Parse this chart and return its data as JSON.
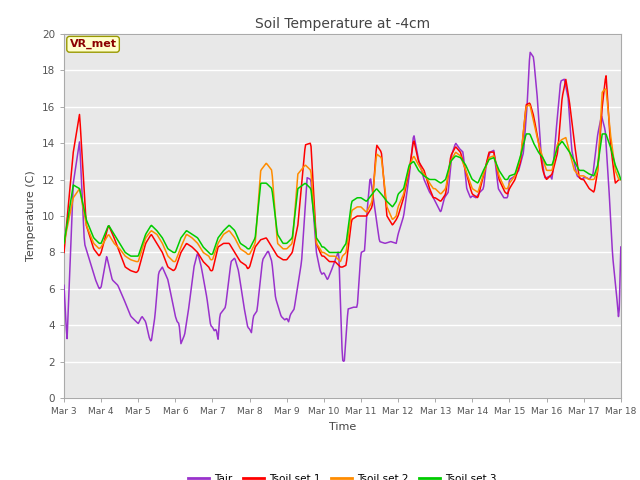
{
  "title": "Soil Temperature at -4cm",
  "xlabel": "Time",
  "ylabel": "Temperature (C)",
  "ylim": [
    0,
    20
  ],
  "xlim": [
    0,
    15
  ],
  "plot_bg_color": "#e8e8e8",
  "grid_color": "white",
  "annotation_text": "VR_met",
  "annotation_color": "#8b0000",
  "annotation_bg": "#ffffcc",
  "annotation_edge": "#999900",
  "line_colors": {
    "Tair": "#9932CC",
    "Tsoil_set1": "#ff0000",
    "Tsoil_set2": "#ff8c00",
    "Tsoil_set3": "#00cc00"
  },
  "legend_labels": [
    "Tair",
    "Tsoil set 1",
    "Tsoil set 2",
    "Tsoil set 3"
  ],
  "xtick_labels": [
    "Mar 3",
    "Mar 4",
    "Mar 5",
    "Mar 6",
    "Mar 7",
    "Mar 8",
    "Mar 9",
    "Mar 10",
    "Mar 11",
    "Mar 12",
    "Mar 13",
    "Mar 14",
    "Mar 15",
    "Mar 16",
    "Mar 17",
    "Mar 18"
  ],
  "tair_waypoints": [
    [
      0.0,
      6.2
    ],
    [
      0.08,
      3.1
    ],
    [
      0.25,
      11.8
    ],
    [
      0.42,
      14.1
    ],
    [
      0.55,
      8.5
    ],
    [
      0.7,
      7.5
    ],
    [
      0.85,
      6.5
    ],
    [
      0.95,
      6.0
    ],
    [
      1.0,
      6.1
    ],
    [
      1.15,
      7.8
    ],
    [
      1.3,
      6.5
    ],
    [
      1.45,
      6.2
    ],
    [
      1.6,
      5.5
    ],
    [
      1.8,
      4.5
    ],
    [
      1.95,
      4.2
    ],
    [
      2.0,
      4.1
    ],
    [
      2.1,
      4.5
    ],
    [
      2.2,
      4.2
    ],
    [
      2.3,
      3.3
    ],
    [
      2.35,
      3.1
    ],
    [
      2.45,
      4.5
    ],
    [
      2.55,
      6.9
    ],
    [
      2.65,
      7.2
    ],
    [
      2.8,
      6.5
    ],
    [
      2.95,
      5.0
    ],
    [
      3.0,
      4.5
    ],
    [
      3.05,
      4.2
    ],
    [
      3.1,
      4.1
    ],
    [
      3.15,
      3.0
    ],
    [
      3.25,
      3.5
    ],
    [
      3.35,
      4.8
    ],
    [
      3.5,
      7.2
    ],
    [
      3.6,
      8.0
    ],
    [
      3.7,
      7.2
    ],
    [
      3.85,
      5.5
    ],
    [
      3.95,
      4.0
    ],
    [
      4.0,
      3.9
    ],
    [
      4.05,
      3.7
    ],
    [
      4.1,
      3.8
    ],
    [
      4.15,
      3.2
    ],
    [
      4.2,
      4.6
    ],
    [
      4.35,
      5.0
    ],
    [
      4.5,
      7.5
    ],
    [
      4.6,
      7.7
    ],
    [
      4.7,
      7.0
    ],
    [
      4.85,
      5.0
    ],
    [
      4.95,
      3.9
    ],
    [
      5.0,
      3.8
    ],
    [
      5.05,
      3.6
    ],
    [
      5.1,
      4.5
    ],
    [
      5.2,
      4.8
    ],
    [
      5.35,
      7.6
    ],
    [
      5.5,
      8.1
    ],
    [
      5.6,
      7.5
    ],
    [
      5.7,
      5.5
    ],
    [
      5.85,
      4.5
    ],
    [
      5.95,
      4.3
    ],
    [
      6.0,
      4.4
    ],
    [
      6.05,
      4.2
    ],
    [
      6.1,
      4.6
    ],
    [
      6.2,
      4.9
    ],
    [
      6.4,
      7.5
    ],
    [
      6.55,
      12.1
    ],
    [
      6.65,
      12.0
    ],
    [
      6.8,
      8.0
    ],
    [
      6.9,
      7.0
    ],
    [
      6.95,
      6.8
    ],
    [
      7.0,
      6.9
    ],
    [
      7.05,
      6.7
    ],
    [
      7.1,
      6.5
    ],
    [
      7.2,
      7.0
    ],
    [
      7.4,
      8.1
    ],
    [
      7.5,
      2.1
    ],
    [
      7.55,
      2.0
    ],
    [
      7.65,
      4.9
    ],
    [
      7.8,
      5.0
    ],
    [
      7.9,
      5.0
    ],
    [
      8.0,
      8.0
    ],
    [
      8.1,
      8.1
    ],
    [
      8.15,
      9.9
    ],
    [
      8.25,
      12.2
    ],
    [
      8.4,
      10.0
    ],
    [
      8.5,
      8.6
    ],
    [
      8.65,
      8.5
    ],
    [
      8.8,
      8.6
    ],
    [
      8.95,
      8.5
    ],
    [
      9.0,
      9.0
    ],
    [
      9.15,
      10.0
    ],
    [
      9.3,
      12.2
    ],
    [
      9.42,
      14.5
    ],
    [
      9.55,
      13.1
    ],
    [
      9.7,
      12.0
    ],
    [
      9.85,
      11.3
    ],
    [
      9.95,
      11.0
    ],
    [
      10.0,
      10.8
    ],
    [
      10.15,
      10.2
    ],
    [
      10.25,
      11.0
    ],
    [
      10.35,
      11.3
    ],
    [
      10.45,
      13.4
    ],
    [
      10.55,
      14.0
    ],
    [
      10.65,
      13.7
    ],
    [
      10.75,
      13.5
    ],
    [
      10.85,
      11.5
    ],
    [
      10.95,
      11.0
    ],
    [
      11.0,
      11.1
    ],
    [
      11.1,
      11.0
    ],
    [
      11.2,
      11.3
    ],
    [
      11.3,
      11.5
    ],
    [
      11.38,
      12.9
    ],
    [
      11.48,
      13.5
    ],
    [
      11.58,
      13.6
    ],
    [
      11.7,
      11.5
    ],
    [
      11.85,
      11.0
    ],
    [
      11.95,
      11.0
    ],
    [
      12.0,
      12.0
    ],
    [
      12.08,
      12.1
    ],
    [
      12.15,
      12.2
    ],
    [
      12.25,
      12.5
    ],
    [
      12.38,
      13.5
    ],
    [
      12.48,
      16.2
    ],
    [
      12.55,
      19.0
    ],
    [
      12.65,
      18.7
    ],
    [
      12.75,
      16.5
    ],
    [
      12.85,
      13.5
    ],
    [
      12.95,
      12.1
    ],
    [
      13.0,
      12.1
    ],
    [
      13.1,
      12.2
    ],
    [
      13.15,
      12.0
    ],
    [
      13.25,
      14.5
    ],
    [
      13.38,
      17.4
    ],
    [
      13.48,
      17.5
    ],
    [
      13.58,
      16.5
    ],
    [
      13.68,
      13.6
    ],
    [
      13.82,
      12.2
    ],
    [
      13.95,
      12.0
    ],
    [
      14.0,
      12.1
    ],
    [
      14.08,
      12.1
    ],
    [
      14.15,
      12.0
    ],
    [
      14.25,
      12.3
    ],
    [
      14.38,
      14.5
    ],
    [
      14.48,
      15.5
    ],
    [
      14.58,
      14.7
    ],
    [
      14.68,
      11.5
    ],
    [
      14.78,
      7.8
    ],
    [
      14.88,
      5.8
    ],
    [
      14.95,
      4.2
    ],
    [
      15.0,
      8.3
    ]
  ],
  "ts1_waypoints": [
    [
      0.0,
      8.0
    ],
    [
      0.25,
      13.5
    ],
    [
      0.42,
      15.6
    ],
    [
      0.6,
      9.5
    ],
    [
      0.8,
      8.2
    ],
    [
      0.95,
      7.8
    ],
    [
      1.0,
      8.0
    ],
    [
      1.2,
      9.5
    ],
    [
      1.35,
      8.8
    ],
    [
      1.5,
      8.0
    ],
    [
      1.65,
      7.2
    ],
    [
      1.8,
      7.0
    ],
    [
      1.95,
      6.9
    ],
    [
      2.0,
      7.0
    ],
    [
      2.2,
      8.5
    ],
    [
      2.35,
      9.0
    ],
    [
      2.5,
      8.5
    ],
    [
      2.65,
      8.0
    ],
    [
      2.8,
      7.2
    ],
    [
      2.95,
      7.0
    ],
    [
      3.0,
      7.1
    ],
    [
      3.15,
      8.0
    ],
    [
      3.3,
      8.5
    ],
    [
      3.45,
      8.3
    ],
    [
      3.6,
      8.0
    ],
    [
      3.75,
      7.5
    ],
    [
      3.9,
      7.2
    ],
    [
      3.95,
      7.0
    ],
    [
      4.0,
      7.0
    ],
    [
      4.15,
      8.3
    ],
    [
      4.3,
      8.5
    ],
    [
      4.45,
      8.5
    ],
    [
      4.6,
      8.0
    ],
    [
      4.75,
      7.5
    ],
    [
      4.9,
      7.3
    ],
    [
      4.95,
      7.1
    ],
    [
      5.0,
      7.2
    ],
    [
      5.15,
      8.3
    ],
    [
      5.3,
      8.7
    ],
    [
      5.45,
      8.8
    ],
    [
      5.6,
      8.3
    ],
    [
      5.75,
      7.8
    ],
    [
      5.9,
      7.6
    ],
    [
      6.0,
      7.6
    ],
    [
      6.15,
      8.0
    ],
    [
      6.3,
      9.5
    ],
    [
      6.5,
      13.9
    ],
    [
      6.65,
      14.0
    ],
    [
      6.8,
      8.5
    ],
    [
      6.9,
      8.0
    ],
    [
      6.95,
      7.8
    ],
    [
      7.0,
      7.8
    ],
    [
      7.15,
      7.5
    ],
    [
      7.3,
      7.5
    ],
    [
      7.45,
      7.2
    ],
    [
      7.5,
      7.2
    ],
    [
      7.6,
      7.3
    ],
    [
      7.75,
      9.8
    ],
    [
      7.9,
      10.0
    ],
    [
      8.0,
      10.0
    ],
    [
      8.15,
      10.0
    ],
    [
      8.3,
      10.5
    ],
    [
      8.42,
      13.9
    ],
    [
      8.55,
      13.5
    ],
    [
      8.7,
      10.0
    ],
    [
      8.85,
      9.5
    ],
    [
      8.95,
      9.8
    ],
    [
      9.0,
      10.0
    ],
    [
      9.15,
      11.0
    ],
    [
      9.3,
      12.5
    ],
    [
      9.42,
      14.2
    ],
    [
      9.55,
      13.0
    ],
    [
      9.7,
      12.5
    ],
    [
      9.85,
      11.5
    ],
    [
      9.95,
      11.0
    ],
    [
      10.0,
      11.0
    ],
    [
      10.15,
      10.8
    ],
    [
      10.28,
      11.2
    ],
    [
      10.42,
      13.3
    ],
    [
      10.55,
      13.8
    ],
    [
      10.68,
      13.5
    ],
    [
      10.82,
      12.5
    ],
    [
      10.95,
      11.5
    ],
    [
      11.0,
      11.2
    ],
    [
      11.15,
      11.0
    ],
    [
      11.3,
      12.2
    ],
    [
      11.45,
      13.5
    ],
    [
      11.58,
      13.5
    ],
    [
      11.72,
      12.0
    ],
    [
      11.88,
      11.3
    ],
    [
      11.95,
      11.2
    ],
    [
      12.0,
      11.5
    ],
    [
      12.15,
      12.0
    ],
    [
      12.3,
      13.0
    ],
    [
      12.45,
      16.1
    ],
    [
      12.55,
      16.2
    ],
    [
      12.65,
      15.5
    ],
    [
      12.78,
      14.1
    ],
    [
      12.9,
      12.5
    ],
    [
      12.95,
      12.2
    ],
    [
      13.0,
      12.0
    ],
    [
      13.15,
      12.3
    ],
    [
      13.3,
      13.5
    ],
    [
      13.42,
      16.5
    ],
    [
      13.52,
      17.5
    ],
    [
      13.62,
      16.2
    ],
    [
      13.75,
      14.0
    ],
    [
      13.88,
      12.1
    ],
    [
      13.95,
      12.0
    ],
    [
      14.0,
      12.0
    ],
    [
      14.15,
      11.5
    ],
    [
      14.28,
      11.3
    ],
    [
      14.38,
      12.5
    ],
    [
      14.5,
      16.0
    ],
    [
      14.6,
      17.8
    ],
    [
      14.72,
      14.0
    ],
    [
      14.85,
      11.8
    ],
    [
      14.95,
      12.0
    ],
    [
      15.0,
      12.0
    ]
  ],
  "ts2_waypoints": [
    [
      0.0,
      8.5
    ],
    [
      0.25,
      11.0
    ],
    [
      0.42,
      11.5
    ],
    [
      0.6,
      9.5
    ],
    [
      0.8,
      8.5
    ],
    [
      0.95,
      8.2
    ],
    [
      1.0,
      8.3
    ],
    [
      1.2,
      9.0
    ],
    [
      1.35,
      8.5
    ],
    [
      1.5,
      8.2
    ],
    [
      1.65,
      7.8
    ],
    [
      1.8,
      7.6
    ],
    [
      1.95,
      7.5
    ],
    [
      2.0,
      7.5
    ],
    [
      2.2,
      8.8
    ],
    [
      2.35,
      9.2
    ],
    [
      2.5,
      9.0
    ],
    [
      2.65,
      8.5
    ],
    [
      2.8,
      7.8
    ],
    [
      2.95,
      7.5
    ],
    [
      3.0,
      7.5
    ],
    [
      3.15,
      8.3
    ],
    [
      3.3,
      9.0
    ],
    [
      3.45,
      8.8
    ],
    [
      3.6,
      8.5
    ],
    [
      3.75,
      8.0
    ],
    [
      3.9,
      7.8
    ],
    [
      3.95,
      7.6
    ],
    [
      4.0,
      7.6
    ],
    [
      4.15,
      8.5
    ],
    [
      4.3,
      9.0
    ],
    [
      4.45,
      9.2
    ],
    [
      4.6,
      8.8
    ],
    [
      4.75,
      8.2
    ],
    [
      4.9,
      8.0
    ],
    [
      4.95,
      7.9
    ],
    [
      5.0,
      7.9
    ],
    [
      5.15,
      8.5
    ],
    [
      5.3,
      12.5
    ],
    [
      5.45,
      12.9
    ],
    [
      5.6,
      12.5
    ],
    [
      5.75,
      8.5
    ],
    [
      5.9,
      8.2
    ],
    [
      6.0,
      8.2
    ],
    [
      6.15,
      8.5
    ],
    [
      6.3,
      12.3
    ],
    [
      6.5,
      12.8
    ],
    [
      6.65,
      12.5
    ],
    [
      6.8,
      8.5
    ],
    [
      6.9,
      8.2
    ],
    [
      6.95,
      8.0
    ],
    [
      7.0,
      8.0
    ],
    [
      7.15,
      7.8
    ],
    [
      7.3,
      7.8
    ],
    [
      7.45,
      7.5
    ],
    [
      7.5,
      7.8
    ],
    [
      7.6,
      8.0
    ],
    [
      7.75,
      10.3
    ],
    [
      7.9,
      10.5
    ],
    [
      8.0,
      10.5
    ],
    [
      8.15,
      10.2
    ],
    [
      8.3,
      10.8
    ],
    [
      8.42,
      13.4
    ],
    [
      8.55,
      13.2
    ],
    [
      8.7,
      10.5
    ],
    [
      8.85,
      9.8
    ],
    [
      8.95,
      10.0
    ],
    [
      9.0,
      10.5
    ],
    [
      9.15,
      11.2
    ],
    [
      9.3,
      12.7
    ],
    [
      9.42,
      13.3
    ],
    [
      9.55,
      12.8
    ],
    [
      9.7,
      12.3
    ],
    [
      9.85,
      11.8
    ],
    [
      9.95,
      11.5
    ],
    [
      10.0,
      11.5
    ],
    [
      10.15,
      11.2
    ],
    [
      10.28,
      11.5
    ],
    [
      10.42,
      13.0
    ],
    [
      10.55,
      13.5
    ],
    [
      10.68,
      13.3
    ],
    [
      10.82,
      12.5
    ],
    [
      10.95,
      11.8
    ],
    [
      11.0,
      11.5
    ],
    [
      11.15,
      11.3
    ],
    [
      11.3,
      12.3
    ],
    [
      11.45,
      13.2
    ],
    [
      11.58,
      13.3
    ],
    [
      11.72,
      12.2
    ],
    [
      11.88,
      11.5
    ],
    [
      11.95,
      11.5
    ],
    [
      12.0,
      11.8
    ],
    [
      12.15,
      12.2
    ],
    [
      12.3,
      13.2
    ],
    [
      12.45,
      16.0
    ],
    [
      12.55,
      16.1
    ],
    [
      12.65,
      15.2
    ],
    [
      12.78,
      14.0
    ],
    [
      12.9,
      13.2
    ],
    [
      12.95,
      12.8
    ],
    [
      13.0,
      12.5
    ],
    [
      13.15,
      12.5
    ],
    [
      13.3,
      14.0
    ],
    [
      13.42,
      14.2
    ],
    [
      13.52,
      14.3
    ],
    [
      13.62,
      13.5
    ],
    [
      13.75,
      12.5
    ],
    [
      13.88,
      12.2
    ],
    [
      13.95,
      12.2
    ],
    [
      14.0,
      12.2
    ],
    [
      14.15,
      12.0
    ],
    [
      14.28,
      12.0
    ],
    [
      14.38,
      12.5
    ],
    [
      14.5,
      16.8
    ],
    [
      14.6,
      17.0
    ],
    [
      14.72,
      14.5
    ],
    [
      14.85,
      12.5
    ],
    [
      14.95,
      12.0
    ],
    [
      15.0,
      12.0
    ]
  ],
  "ts3_waypoints": [
    [
      0.0,
      8.5
    ],
    [
      0.25,
      11.7
    ],
    [
      0.42,
      11.5
    ],
    [
      0.6,
      9.8
    ],
    [
      0.8,
      8.8
    ],
    [
      0.95,
      8.5
    ],
    [
      1.0,
      8.5
    ],
    [
      1.2,
      9.5
    ],
    [
      1.35,
      9.0
    ],
    [
      1.5,
      8.5
    ],
    [
      1.65,
      8.0
    ],
    [
      1.8,
      7.8
    ],
    [
      1.95,
      7.8
    ],
    [
      2.0,
      7.8
    ],
    [
      2.2,
      9.0
    ],
    [
      2.35,
      9.5
    ],
    [
      2.5,
      9.2
    ],
    [
      2.65,
      8.8
    ],
    [
      2.8,
      8.2
    ],
    [
      2.95,
      8.0
    ],
    [
      3.0,
      8.0
    ],
    [
      3.15,
      8.8
    ],
    [
      3.3,
      9.2
    ],
    [
      3.45,
      9.0
    ],
    [
      3.6,
      8.8
    ],
    [
      3.75,
      8.3
    ],
    [
      3.9,
      8.0
    ],
    [
      3.95,
      7.9
    ],
    [
      4.0,
      7.9
    ],
    [
      4.15,
      8.8
    ],
    [
      4.3,
      9.2
    ],
    [
      4.45,
      9.5
    ],
    [
      4.6,
      9.2
    ],
    [
      4.75,
      8.5
    ],
    [
      4.9,
      8.3
    ],
    [
      4.95,
      8.2
    ],
    [
      5.0,
      8.2
    ],
    [
      5.15,
      8.8
    ],
    [
      5.3,
      11.8
    ],
    [
      5.45,
      11.8
    ],
    [
      5.6,
      11.5
    ],
    [
      5.75,
      9.0
    ],
    [
      5.9,
      8.5
    ],
    [
      6.0,
      8.5
    ],
    [
      6.15,
      8.8
    ],
    [
      6.3,
      11.5
    ],
    [
      6.5,
      11.8
    ],
    [
      6.65,
      11.5
    ],
    [
      6.8,
      8.8
    ],
    [
      6.9,
      8.5
    ],
    [
      6.95,
      8.3
    ],
    [
      7.0,
      8.3
    ],
    [
      7.15,
      8.0
    ],
    [
      7.3,
      8.0
    ],
    [
      7.45,
      8.0
    ],
    [
      7.5,
      8.2
    ],
    [
      7.6,
      8.5
    ],
    [
      7.75,
      10.8
    ],
    [
      7.9,
      11.0
    ],
    [
      8.0,
      11.0
    ],
    [
      8.15,
      10.8
    ],
    [
      8.3,
      11.2
    ],
    [
      8.42,
      11.5
    ],
    [
      8.55,
      11.2
    ],
    [
      8.7,
      10.8
    ],
    [
      8.85,
      10.5
    ],
    [
      8.95,
      10.8
    ],
    [
      9.0,
      11.2
    ],
    [
      9.15,
      11.5
    ],
    [
      9.3,
      12.8
    ],
    [
      9.42,
      13.0
    ],
    [
      9.55,
      12.5
    ],
    [
      9.7,
      12.2
    ],
    [
      9.85,
      12.0
    ],
    [
      9.95,
      12.0
    ],
    [
      10.0,
      12.0
    ],
    [
      10.15,
      11.8
    ],
    [
      10.28,
      12.0
    ],
    [
      10.42,
      13.0
    ],
    [
      10.55,
      13.3
    ],
    [
      10.68,
      13.2
    ],
    [
      10.82,
      12.8
    ],
    [
      10.95,
      12.2
    ],
    [
      11.0,
      12.0
    ],
    [
      11.15,
      11.8
    ],
    [
      11.3,
      12.5
    ],
    [
      11.45,
      13.1
    ],
    [
      11.58,
      13.2
    ],
    [
      11.72,
      12.5
    ],
    [
      11.88,
      12.0
    ],
    [
      11.95,
      12.0
    ],
    [
      12.0,
      12.2
    ],
    [
      12.15,
      12.3
    ],
    [
      12.3,
      13.3
    ],
    [
      12.45,
      14.5
    ],
    [
      12.55,
      14.5
    ],
    [
      12.65,
      14.0
    ],
    [
      12.78,
      13.5
    ],
    [
      12.9,
      13.2
    ],
    [
      12.95,
      13.0
    ],
    [
      13.0,
      12.8
    ],
    [
      13.15,
      12.8
    ],
    [
      13.3,
      13.8
    ],
    [
      13.42,
      14.1
    ],
    [
      13.52,
      13.8
    ],
    [
      13.62,
      13.5
    ],
    [
      13.75,
      13.0
    ],
    [
      13.88,
      12.5
    ],
    [
      13.95,
      12.5
    ],
    [
      14.0,
      12.5
    ],
    [
      14.15,
      12.3
    ],
    [
      14.28,
      12.2
    ],
    [
      14.38,
      12.8
    ],
    [
      14.5,
      14.5
    ],
    [
      14.6,
      14.5
    ],
    [
      14.72,
      13.8
    ],
    [
      14.85,
      12.8
    ],
    [
      14.95,
      12.3
    ],
    [
      15.0,
      12.0
    ]
  ]
}
